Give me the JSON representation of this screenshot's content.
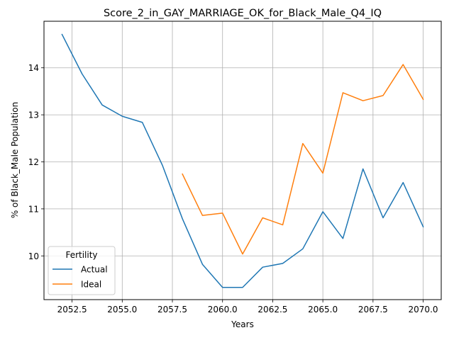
{
  "chart_data": {
    "type": "line",
    "title": "Score_2_in_GAY_MARRIAGE_OK_for_Black_Male_Q4_IQ",
    "xlabel": "Years",
    "ylabel": "% of Black_Male Population",
    "xlim": [
      2051.1,
      2070.9
    ],
    "ylim": [
      9.07,
      14.99
    ],
    "xticks": [
      2052.5,
      2055.0,
      2057.5,
      2060.0,
      2062.5,
      2065.0,
      2067.5,
      2070.0
    ],
    "xtick_labels": [
      "2052.5",
      "2055.0",
      "2057.5",
      "2060.0",
      "2062.5",
      "2065.0",
      "2067.5",
      "2070.0"
    ],
    "yticks": [
      10,
      11,
      12,
      13,
      14
    ],
    "ytick_labels": [
      "10",
      "11",
      "12",
      "13",
      "14"
    ],
    "grid": true,
    "legend": {
      "title": "Fertility",
      "placement": "lower-left"
    },
    "series": [
      {
        "name": "Actual",
        "color": "#1f77b4",
        "x": [
          2052,
          2053,
          2054,
          2055,
          2056,
          2057,
          2058,
          2059,
          2060,
          2061,
          2062,
          2063,
          2064,
          2065,
          2066,
          2067,
          2068,
          2069,
          2070
        ],
        "values": [
          14.71,
          13.87,
          13.21,
          12.97,
          12.84,
          11.93,
          10.79,
          9.82,
          9.33,
          9.33,
          9.76,
          9.84,
          10.15,
          10.94,
          10.37,
          11.85,
          10.81,
          11.56,
          10.62
        ]
      },
      {
        "name": "Ideal",
        "color": "#ff7f0e",
        "x": [
          2058,
          2059,
          2060,
          2061,
          2062,
          2063,
          2064,
          2065,
          2066,
          2067,
          2068,
          2069,
          2070
        ],
        "values": [
          11.74,
          10.86,
          10.91,
          10.04,
          10.81,
          10.66,
          12.39,
          11.76,
          13.47,
          13.3,
          13.41,
          14.07,
          13.33
        ]
      }
    ]
  }
}
